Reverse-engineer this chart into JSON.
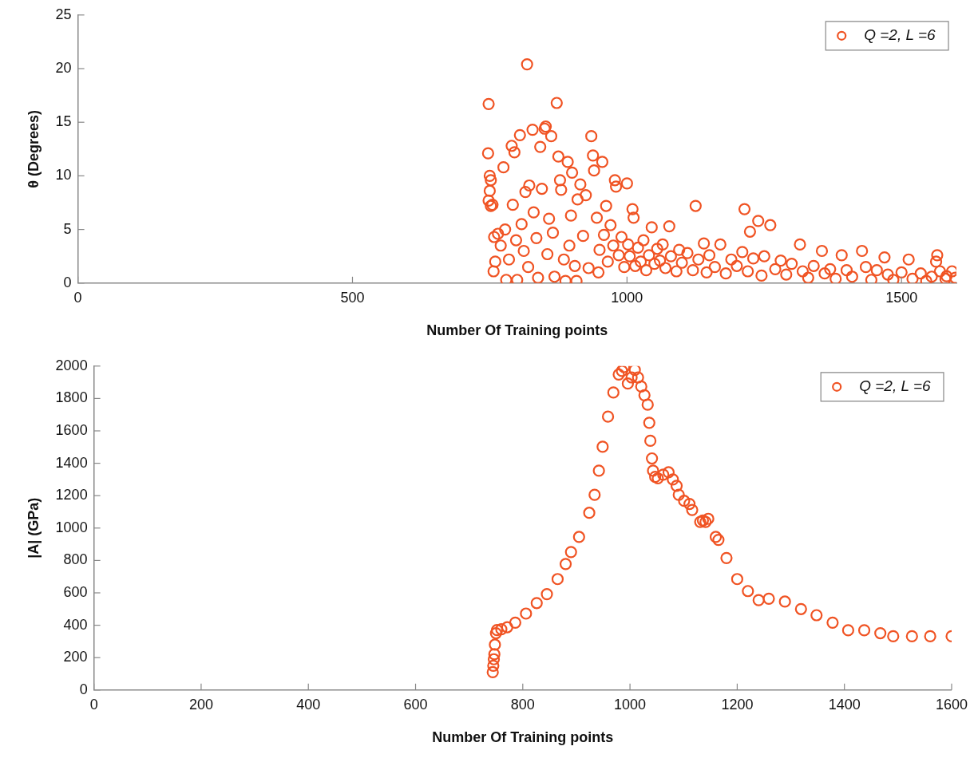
{
  "chart_data": [
    {
      "type": "scatter",
      "xlabel": "Number Of Training points",
      "ylabel": "θ (Degrees)",
      "xlim": [
        0,
        1600
      ],
      "xticks": [
        0,
        500,
        1000,
        1500
      ],
      "ylim": [
        0,
        25
      ],
      "yticks": [
        0,
        5,
        10,
        15,
        20,
        25
      ],
      "legend": "top right",
      "marker": "circle",
      "grid": false,
      "series": [
        {
          "name": "Q =2, L =6",
          "color": "#f05323",
          "x": [
            748,
            747,
            750,
            752,
            750,
            748,
            752,
            755,
            758,
            760,
            757,
            765,
            770,
            775,
            778,
            780,
            785,
            790,
            792,
            795,
            798,
            800,
            805,
            808,
            812,
            815,
            818,
            820,
            822,
            828,
            830,
            835,
            838,
            842,
            845,
            850,
            852,
            855,
            858,
            862,
            865,
            868,
            872,
            875,
            878,
            880,
            885,
            888,
            892,
            895,
            898,
            900,
            905,
            908,
            910,
            915,
            920,
            925,
            930,
            935,
            938,
            940,
            945,
            948,
            950,
            955,
            958,
            962,
            965,
            970,
            975,
            978,
            980,
            985,
            990,
            995,
            1000,
            1002,
            1005,
            1010,
            1012,
            1015,
            1020,
            1025,
            1030,
            1035,
            1040,
            1045,
            1050,
            1055,
            1060,
            1065,
            1070,
            1077,
            1080,
            1090,
            1095,
            1100,
            1110,
            1120,
            1125,
            1130,
            1140,
            1145,
            1150,
            1160,
            1170,
            1180,
            1190,
            1200,
            1210,
            1214,
            1220,
            1224,
            1230,
            1239,
            1245,
            1250,
            1261,
            1270,
            1280,
            1290,
            1300,
            1315,
            1320,
            1330,
            1340,
            1355,
            1360,
            1370,
            1380,
            1391,
            1400,
            1410,
            1428,
            1435,
            1445,
            1455,
            1469,
            1475,
            1485,
            1500,
            1513,
            1520,
            1535,
            1545,
            1555,
            1563,
            1565,
            1570,
            1580,
            1582,
            1592,
            1598
          ],
          "values": [
            16.7,
            12.1,
            10,
            9.6,
            8.6,
            7.7,
            7.2,
            7.3,
            4.3,
            2,
            1.1,
            4.6,
            3.5,
            10.8,
            5,
            0.3,
            2.2,
            12.8,
            7.3,
            12.2,
            4,
            0.3,
            13.8,
            5.5,
            3,
            8.5,
            20.4,
            1.5,
            9.1,
            14.3,
            6.6,
            4.2,
            0.5,
            12.7,
            8.8,
            14.4,
            14.6,
            2.7,
            6,
            13.7,
            4.7,
            0.6,
            16.8,
            11.8,
            9.6,
            8.7,
            2.2,
            0.2,
            11.3,
            3.5,
            6.3,
            10.3,
            1.6,
            0.2,
            7.8,
            9.2,
            4.4,
            8.2,
            1.4,
            13.7,
            11.9,
            10.5,
            6.1,
            1,
            3.1,
            11.3,
            4.5,
            7.2,
            2,
            5.4,
            3.5,
            9.6,
            9,
            2.6,
            4.3,
            1.5,
            9.3,
            3.6,
            2.5,
            6.9,
            6.1,
            1.6,
            3.3,
            2,
            4,
            1.2,
            2.6,
            5.2,
            1.8,
            3.2,
            2.1,
            3.6,
            1.4,
            5.3,
            2.5,
            1.1,
            3.1,
            1.9,
            2.8,
            1.2,
            7.2,
            2.2,
            3.7,
            1,
            2.6,
            1.5,
            3.6,
            0.9,
            2.2,
            1.6,
            2.9,
            6.9,
            1.1,
            4.8,
            2.3,
            5.8,
            0.7,
            2.5,
            5.4,
            1.3,
            2.1,
            0.8,
            1.8,
            3.6,
            1.1,
            0.5,
            1.6,
            3,
            0.9,
            1.3,
            0.4,
            2.6,
            1.2,
            0.6,
            3,
            1.5,
            0.3,
            1.2,
            2.4,
            0.8,
            0.3,
            1,
            2.2,
            0.4,
            0.9,
            0.2,
            0.6,
            2,
            2.6,
            1.1,
            0.4,
            0.65,
            1.1,
            0.5
          ]
        }
      ]
    },
    {
      "type": "scatter",
      "xlabel": "Number Of Training points",
      "ylabel": "|A| (GPa)",
      "xlim": [
        0,
        1600
      ],
      "xticks": [
        0,
        200,
        400,
        600,
        800,
        1000,
        1200,
        1400,
        1600
      ],
      "ylim": [
        0,
        2000
      ],
      "yticks": [
        0,
        200,
        400,
        600,
        800,
        1000,
        1200,
        1400,
        1600,
        1800,
        2000
      ],
      "legend": "top right",
      "marker": "circle",
      "grid": false,
      "series": [
        {
          "name": "Q =2, L =6",
          "color": "#f05323",
          "x": [
            744,
            745,
            746,
            747,
            748,
            750,
            752,
            760,
            771,
            786,
            806,
            826,
            845,
            865,
            880,
            890,
            905,
            924,
            934,
            942,
            949,
            959,
            969,
            979,
            985,
            989,
            996,
            1003,
            1009,
            1015,
            1021,
            1027,
            1033,
            1036,
            1038,
            1041,
            1043,
            1047,
            1052,
            1062,
            1072,
            1080,
            1087,
            1091,
            1101,
            1111,
            1116,
            1131,
            1136,
            1141,
            1146,
            1160,
            1165,
            1180,
            1200,
            1220,
            1240,
            1259,
            1289,
            1319,
            1348,
            1378,
            1407,
            1437,
            1467,
            1491,
            1526,
            1560,
            1600
          ],
          "values": [
            110,
            150,
            190,
            221,
            280,
            351,
            370,
            375,
            388,
            416,
            472,
            537,
            592,
            685,
            778,
            852,
            945,
            1094,
            1205,
            1354,
            1502,
            1688,
            1837,
            1948,
            1970,
            1994,
            1892,
            1930,
            1976,
            1930,
            1874,
            1820,
            1762,
            1650,
            1539,
            1430,
            1354,
            1316,
            1307,
            1330,
            1344,
            1300,
            1261,
            1205,
            1168,
            1149,
            1112,
            1038,
            1047,
            1038,
            1057,
            945,
            927,
            815,
            685,
            611,
            555,
            564,
            546,
            500,
            462,
            416,
            369,
            369,
            351,
            332,
            332,
            332,
            332
          ]
        }
      ]
    }
  ]
}
